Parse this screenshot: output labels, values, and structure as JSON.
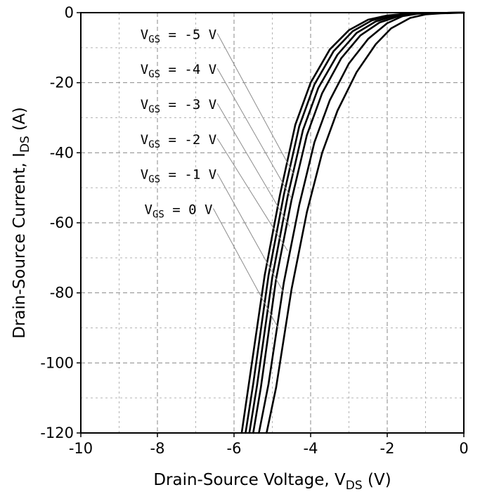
{
  "chart_data": {
    "type": "line",
    "xlabel": {
      "main": "Drain-Source Voltage, V",
      "sub": "DS",
      "unit": " (V)"
    },
    "ylabel": {
      "main": "Drain-Source Current, I",
      "sub": "DS",
      "unit": " (A)"
    },
    "xlim": [
      -10,
      0
    ],
    "ylim": [
      -120,
      0
    ],
    "x_ticks": [
      -10,
      -8,
      -6,
      -4,
      -2,
      0
    ],
    "y_ticks": [
      0,
      -20,
      -40,
      -60,
      -80,
      -100,
      -120
    ],
    "x_tick_labels": [
      "-10",
      "-8",
      "-6",
      "-4",
      "-2",
      "0"
    ],
    "y_tick_labels": [
      "0",
      "-20",
      "-40",
      "-60",
      "-80",
      "-100",
      "-120"
    ],
    "grid": {
      "major": "dashed",
      "minor": "dashed"
    },
    "series": [
      {
        "name": "VGS = -5 V",
        "label_main": "V",
        "label_sub": "GS",
        "label_rest": " = -5 V",
        "x": [
          0,
          -0.8,
          -1.5,
          -2.0,
          -2.5,
          -3.0,
          -3.5,
          -4.0,
          -4.4,
          -4.8,
          -5.2,
          -5.6,
          -5.8
        ],
        "y": [
          0,
          -0.1,
          -0.3,
          -0.8,
          -2.0,
          -5.0,
          -10.5,
          -20.0,
          -32.0,
          -52.0,
          -75.0,
          -105.0,
          -120.0
        ]
      },
      {
        "name": "VGS = -4 V",
        "label_main": "V",
        "label_sub": "GS",
        "label_rest": " = -4 V",
        "x": [
          0,
          -0.8,
          -1.5,
          -1.9,
          -2.4,
          -2.9,
          -3.4,
          -3.9,
          -4.3,
          -4.7,
          -5.1,
          -5.5,
          -5.7
        ],
        "y": [
          0,
          -0.1,
          -0.3,
          -0.8,
          -2.2,
          -5.3,
          -11.0,
          -20.5,
          -32.5,
          -52.0,
          -75.0,
          -106.0,
          -120.0
        ]
      },
      {
        "name": "VGS = -3 V",
        "label_main": "V",
        "label_sub": "GS",
        "label_rest": " = -3 V",
        "x": [
          0,
          -0.8,
          -1.4,
          -1.8,
          -2.3,
          -2.8,
          -3.3,
          -3.8,
          -4.2,
          -4.6,
          -5.0,
          -5.4,
          -5.6
        ],
        "y": [
          0,
          -0.1,
          -0.3,
          -0.9,
          -2.5,
          -5.8,
          -12.0,
          -21.5,
          -33.5,
          -52.5,
          -75.5,
          -106.5,
          -120.0
        ]
      },
      {
        "name": "VGS = -2 V",
        "label_main": "V",
        "label_sub": "GS",
        "label_rest": " = -2 V",
        "x": [
          0,
          -0.8,
          -1.3,
          -1.7,
          -2.2,
          -2.7,
          -3.2,
          -3.7,
          -4.1,
          -4.5,
          -4.9,
          -5.3,
          -5.5
        ],
        "y": [
          0,
          -0.1,
          -0.3,
          -1.0,
          -2.8,
          -6.5,
          -13.0,
          -23.0,
          -35.0,
          -53.5,
          -76.0,
          -107.0,
          -120.0
        ]
      },
      {
        "name": "VGS = -1 V",
        "label_main": "V",
        "label_sub": "GS",
        "label_rest": " = -1 V",
        "x": [
          0,
          -0.7,
          -1.2,
          -1.6,
          -2.0,
          -2.5,
          -3.0,
          -3.5,
          -3.9,
          -4.3,
          -4.7,
          -5.1,
          -5.35
        ],
        "y": [
          0,
          -0.1,
          -0.3,
          -1.0,
          -3.0,
          -7.5,
          -14.5,
          -25.0,
          -37.0,
          -55.0,
          -77.0,
          -106.0,
          -120.0
        ]
      },
      {
        "name": "VGS = 0 V",
        "label_main": "V",
        "label_sub": "GS",
        "label_rest": " = 0 V",
        "x": [
          0,
          -0.6,
          -1.0,
          -1.4,
          -1.9,
          -2.3,
          -2.8,
          -3.3,
          -3.7,
          -4.1,
          -4.5,
          -4.9,
          -5.15
        ],
        "y": [
          0,
          -0.2,
          -0.5,
          -1.5,
          -4.5,
          -9.0,
          -17.0,
          -28.0,
          -40.0,
          -57.0,
          -79.0,
          -107.0,
          -120.0
        ]
      }
    ],
    "callouts": [
      {
        "series": 0,
        "label_at": [
          -7.45,
          -7.5
        ],
        "tip_at": [
          -4.45,
          -46.0
        ]
      },
      {
        "series": 1,
        "label_at": [
          -7.45,
          -17.5
        ],
        "tip_at": [
          -4.5,
          -53.0
        ]
      },
      {
        "series": 2,
        "label_at": [
          -7.45,
          -27.5
        ],
        "tip_at": [
          -4.55,
          -61.0
        ]
      },
      {
        "series": 3,
        "label_at": [
          -7.45,
          -37.5
        ],
        "tip_at": [
          -4.6,
          -68.0
        ]
      },
      {
        "series": 4,
        "label_at": [
          -7.45,
          -47.5
        ],
        "tip_at": [
          -4.7,
          -80.0
        ]
      },
      {
        "series": 5,
        "label_at": [
          -7.45,
          -57.5
        ],
        "tip_at": [
          -4.85,
          -90.0
        ]
      }
    ]
  }
}
